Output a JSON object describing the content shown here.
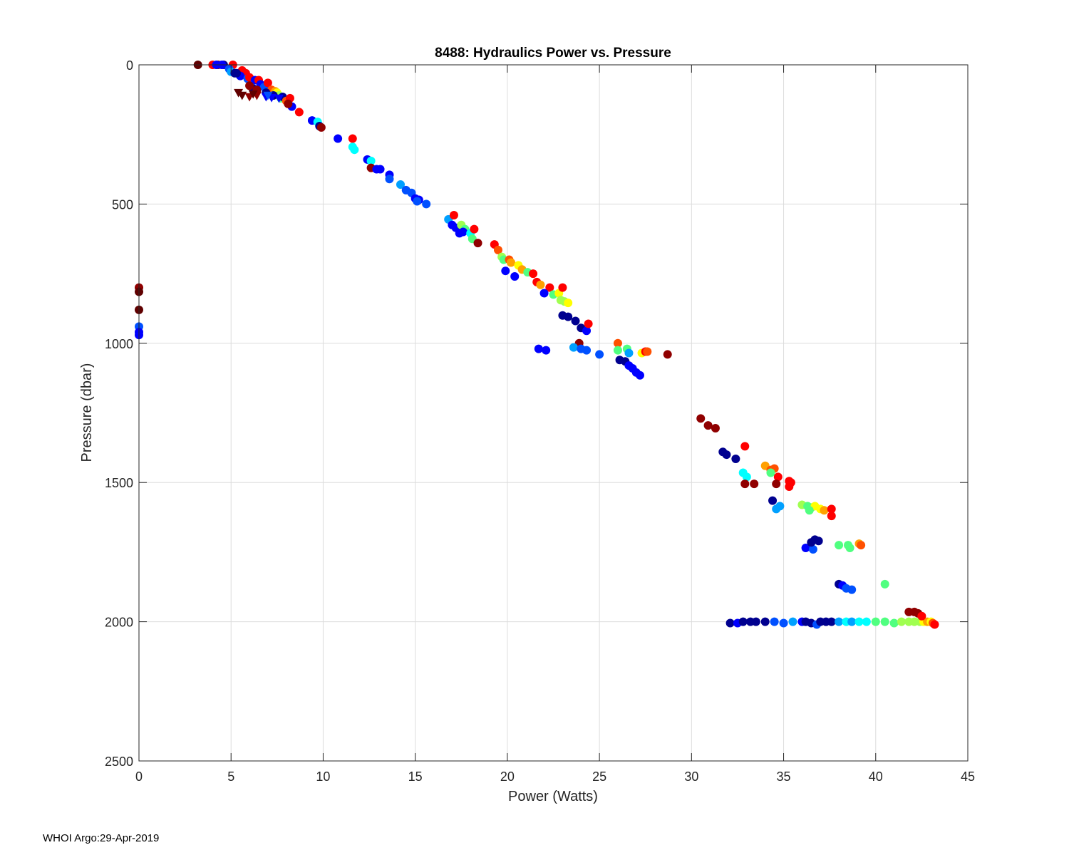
{
  "chart_data": {
    "type": "scatter",
    "title": "8488: Hydraulics Power vs. Pressure",
    "xlabel": "Power (Watts)",
    "ylabel": "Pressure (dbar)",
    "xlim": [
      0,
      45
    ],
    "ylim": [
      0,
      2500
    ],
    "y_reversed": true,
    "grid": true,
    "xticks": [
      0,
      5,
      10,
      15,
      20,
      25,
      30,
      35,
      40,
      45
    ],
    "yticks": [
      0,
      500,
      1000,
      1500,
      2000,
      2500
    ],
    "xtick_labels": [
      "0",
      "5",
      "10",
      "15",
      "20",
      "25",
      "30",
      "35",
      "40",
      "45"
    ],
    "ytick_labels": [
      "0",
      "500",
      "1000",
      "1500",
      "2000",
      "2500"
    ],
    "colormap": "jet (profile cycle, dark blue = early, dark red = late)",
    "palette": [
      "#00008f",
      "#0000ff",
      "#0050ff",
      "#00a0ff",
      "#00ffff",
      "#50ff80",
      "#a0ff50",
      "#ffff00",
      "#ffa000",
      "#ff5000",
      "#ff0000",
      "#900000",
      "#600000"
    ],
    "circle_points": [
      [
        3.2,
        0,
        12
      ],
      [
        4.0,
        0,
        10
      ],
      [
        4.3,
        0,
        11
      ],
      [
        4.6,
        0,
        0
      ],
      [
        4.5,
        0,
        1
      ],
      [
        4.2,
        0,
        1
      ],
      [
        5.1,
        0,
        10
      ],
      [
        4.9,
        15,
        2
      ],
      [
        5.0,
        25,
        3
      ],
      [
        5.2,
        30,
        0
      ],
      [
        5.6,
        20,
        10
      ],
      [
        5.8,
        30,
        10
      ],
      [
        5.5,
        40,
        1
      ],
      [
        5.9,
        50,
        2
      ],
      [
        6.0,
        45,
        10
      ],
      [
        6.3,
        55,
        1
      ],
      [
        6.5,
        55,
        10
      ],
      [
        6.6,
        70,
        1
      ],
      [
        6.8,
        80,
        2
      ],
      [
        7.0,
        65,
        10
      ],
      [
        7.2,
        90,
        9
      ],
      [
        7.4,
        95,
        8
      ],
      [
        7.5,
        100,
        7
      ],
      [
        7.6,
        110,
        6
      ],
      [
        7.7,
        120,
        5
      ],
      [
        7.8,
        115,
        0
      ],
      [
        8.0,
        130,
        9
      ],
      [
        8.2,
        120,
        10
      ],
      [
        8.3,
        150,
        1
      ],
      [
        8.1,
        140,
        11
      ],
      [
        8.7,
        170,
        10
      ],
      [
        9.4,
        200,
        1
      ],
      [
        9.7,
        205,
        4
      ],
      [
        9.8,
        220,
        0
      ],
      [
        9.9,
        225,
        11
      ],
      [
        6.2,
        85,
        0
      ],
      [
        6.9,
        100,
        0
      ],
      [
        7.3,
        110,
        0
      ],
      [
        5.3,
        30,
        0
      ],
      [
        6.0,
        75,
        11
      ],
      [
        6.4,
        90,
        11
      ],
      [
        10.8,
        265,
        1
      ],
      [
        11.6,
        265,
        10
      ],
      [
        11.6,
        295,
        4
      ],
      [
        11.7,
        305,
        4
      ],
      [
        12.4,
        340,
        1
      ],
      [
        12.6,
        345,
        4
      ],
      [
        12.6,
        370,
        11
      ],
      [
        12.9,
        375,
        1
      ],
      [
        13.1,
        375,
        1
      ],
      [
        13.6,
        395,
        1
      ],
      [
        13.6,
        410,
        2
      ],
      [
        14.2,
        430,
        3
      ],
      [
        14.5,
        450,
        2
      ],
      [
        14.8,
        460,
        2
      ],
      [
        15.0,
        480,
        1
      ],
      [
        15.2,
        485,
        1
      ],
      [
        15.1,
        490,
        2
      ],
      [
        15.6,
        500,
        2
      ],
      [
        16.8,
        555,
        3
      ],
      [
        17.1,
        540,
        10
      ],
      [
        17.0,
        575,
        1
      ],
      [
        17.2,
        585,
        1
      ],
      [
        17.5,
        575,
        6
      ],
      [
        17.7,
        590,
        5
      ],
      [
        17.4,
        605,
        1
      ],
      [
        17.6,
        600,
        1
      ],
      [
        18.0,
        605,
        4
      ],
      [
        18.2,
        590,
        10
      ],
      [
        18.1,
        625,
        5
      ],
      [
        18.4,
        640,
        11
      ],
      [
        19.3,
        645,
        10
      ],
      [
        19.5,
        665,
        9
      ],
      [
        19.7,
        690,
        6
      ],
      [
        19.8,
        700,
        5
      ],
      [
        20.1,
        700,
        9
      ],
      [
        20.2,
        710,
        8
      ],
      [
        20.6,
        720,
        7
      ],
      [
        20.8,
        735,
        8
      ],
      [
        21.1,
        745,
        5
      ],
      [
        21.4,
        750,
        10
      ],
      [
        19.9,
        740,
        1
      ],
      [
        20.4,
        760,
        1
      ],
      [
        21.6,
        780,
        10
      ],
      [
        21.8,
        790,
        8
      ],
      [
        22.3,
        800,
        10
      ],
      [
        22.0,
        820,
        1
      ],
      [
        22.5,
        825,
        5
      ],
      [
        22.8,
        820,
        7
      ],
      [
        23.0,
        800,
        10
      ],
      [
        22.9,
        845,
        6
      ],
      [
        23.1,
        850,
        6
      ],
      [
        23.3,
        855,
        7
      ],
      [
        23.0,
        900,
        0
      ],
      [
        23.3,
        905,
        0
      ],
      [
        23.7,
        920,
        0
      ],
      [
        24.0,
        945,
        0
      ],
      [
        24.3,
        955,
        1
      ],
      [
        24.4,
        930,
        10
      ],
      [
        23.9,
        1000,
        11
      ],
      [
        21.7,
        1020,
        1
      ],
      [
        22.1,
        1025,
        1
      ],
      [
        23.6,
        1015,
        3
      ],
      [
        24.0,
        1020,
        2
      ],
      [
        24.3,
        1025,
        2
      ],
      [
        25.0,
        1040,
        2
      ],
      [
        26.0,
        1000,
        9
      ],
      [
        26.0,
        1025,
        5
      ],
      [
        26.5,
        1020,
        5
      ],
      [
        26.6,
        1035,
        3
      ],
      [
        26.1,
        1060,
        0
      ],
      [
        26.4,
        1065,
        0
      ],
      [
        26.6,
        1080,
        1
      ],
      [
        26.8,
        1090,
        1
      ],
      [
        27.0,
        1105,
        1
      ],
      [
        27.2,
        1115,
        1
      ],
      [
        27.3,
        1035,
        7
      ],
      [
        27.5,
        1030,
        10
      ],
      [
        27.6,
        1030,
        9
      ],
      [
        28.7,
        1040,
        11
      ],
      [
        30.5,
        1270,
        11
      ],
      [
        30.9,
        1295,
        11
      ],
      [
        31.3,
        1305,
        11
      ],
      [
        31.7,
        1390,
        0
      ],
      [
        31.9,
        1400,
        0
      ],
      [
        32.4,
        1415,
        0
      ],
      [
        32.9,
        1370,
        10
      ],
      [
        32.8,
        1465,
        4
      ],
      [
        33.0,
        1480,
        4
      ],
      [
        32.9,
        1505,
        11
      ],
      [
        33.4,
        1505,
        11
      ],
      [
        34.0,
        1440,
        8
      ],
      [
        34.3,
        1455,
        9
      ],
      [
        34.5,
        1450,
        9
      ],
      [
        34.3,
        1465,
        5
      ],
      [
        34.7,
        1480,
        10
      ],
      [
        34.6,
        1505,
        11
      ],
      [
        35.3,
        1495,
        10
      ],
      [
        35.4,
        1500,
        10
      ],
      [
        35.3,
        1515,
        10
      ],
      [
        34.4,
        1565,
        0
      ],
      [
        34.6,
        1595,
        3
      ],
      [
        34.8,
        1585,
        3
      ],
      [
        36.0,
        1580,
        6
      ],
      [
        36.3,
        1585,
        5
      ],
      [
        36.5,
        1590,
        5
      ],
      [
        36.7,
        1585,
        7
      ],
      [
        37.0,
        1595,
        7
      ],
      [
        37.2,
        1600,
        8
      ],
      [
        36.4,
        1600,
        5
      ],
      [
        37.6,
        1595,
        10
      ],
      [
        37.6,
        1620,
        10
      ],
      [
        36.2,
        1735,
        1
      ],
      [
        36.6,
        1740,
        2
      ],
      [
        36.5,
        1715,
        0
      ],
      [
        36.7,
        1705,
        0
      ],
      [
        36.9,
        1710,
        0
      ],
      [
        38.0,
        1725,
        5
      ],
      [
        38.5,
        1725,
        5
      ],
      [
        38.6,
        1735,
        5
      ],
      [
        39.1,
        1720,
        8
      ],
      [
        39.2,
        1725,
        9
      ],
      [
        38.0,
        1865,
        0
      ],
      [
        38.2,
        1870,
        1
      ],
      [
        38.4,
        1880,
        2
      ],
      [
        38.7,
        1885,
        2
      ],
      [
        40.5,
        1865,
        5
      ],
      [
        32.1,
        2005,
        0
      ],
      [
        32.5,
        2005,
        1
      ],
      [
        32.8,
        2000,
        0
      ],
      [
        33.2,
        2000,
        0
      ],
      [
        33.5,
        2000,
        0
      ],
      [
        34.0,
        2000,
        0
      ],
      [
        34.5,
        2000,
        2
      ],
      [
        35.0,
        2005,
        2
      ],
      [
        35.5,
        2000,
        3
      ],
      [
        36.0,
        2000,
        1
      ],
      [
        36.2,
        2000,
        0
      ],
      [
        36.5,
        2005,
        0
      ],
      [
        36.8,
        2010,
        2
      ],
      [
        37.0,
        2000,
        0
      ],
      [
        37.3,
        2000,
        0
      ],
      [
        37.6,
        2000,
        0
      ],
      [
        38.0,
        2000,
        3
      ],
      [
        38.4,
        2000,
        4
      ],
      [
        38.7,
        2000,
        3
      ],
      [
        39.1,
        2000,
        4
      ],
      [
        39.5,
        2000,
        4
      ],
      [
        40.0,
        2000,
        5
      ],
      [
        40.5,
        2000,
        5
      ],
      [
        41.0,
        2005,
        5
      ],
      [
        41.4,
        2000,
        6
      ],
      [
        41.8,
        2000,
        6
      ],
      [
        42.1,
        2000,
        6
      ],
      [
        42.4,
        2000,
        6
      ],
      [
        42.6,
        2000,
        7
      ],
      [
        42.8,
        2000,
        8
      ],
      [
        43.0,
        2000,
        7
      ],
      [
        43.1,
        2005,
        9
      ],
      [
        43.2,
        2010,
        10
      ],
      [
        41.8,
        1965,
        11
      ],
      [
        42.1,
        1965,
        11
      ],
      [
        42.3,
        1970,
        11
      ],
      [
        42.5,
        1980,
        10
      ],
      [
        0.0,
        800,
        11
      ],
      [
        0.0,
        815,
        12
      ],
      [
        0.0,
        880,
        12
      ],
      [
        0.0,
        940,
        2
      ],
      [
        0.0,
        960,
        1
      ],
      [
        0.0,
        970,
        1
      ]
    ],
    "triangle_points": [
      [
        5.6,
        110,
        12
      ],
      [
        6.0,
        115,
        11
      ],
      [
        6.4,
        110,
        11
      ],
      [
        6.9,
        115,
        1
      ],
      [
        7.2,
        118,
        1
      ],
      [
        7.6,
        120,
        1
      ],
      [
        5.4,
        100,
        12
      ],
      [
        6.2,
        105,
        12
      ],
      [
        7.0,
        110,
        2
      ]
    ]
  },
  "footer": {
    "text": "WHOI Argo:29-Apr-2019"
  }
}
